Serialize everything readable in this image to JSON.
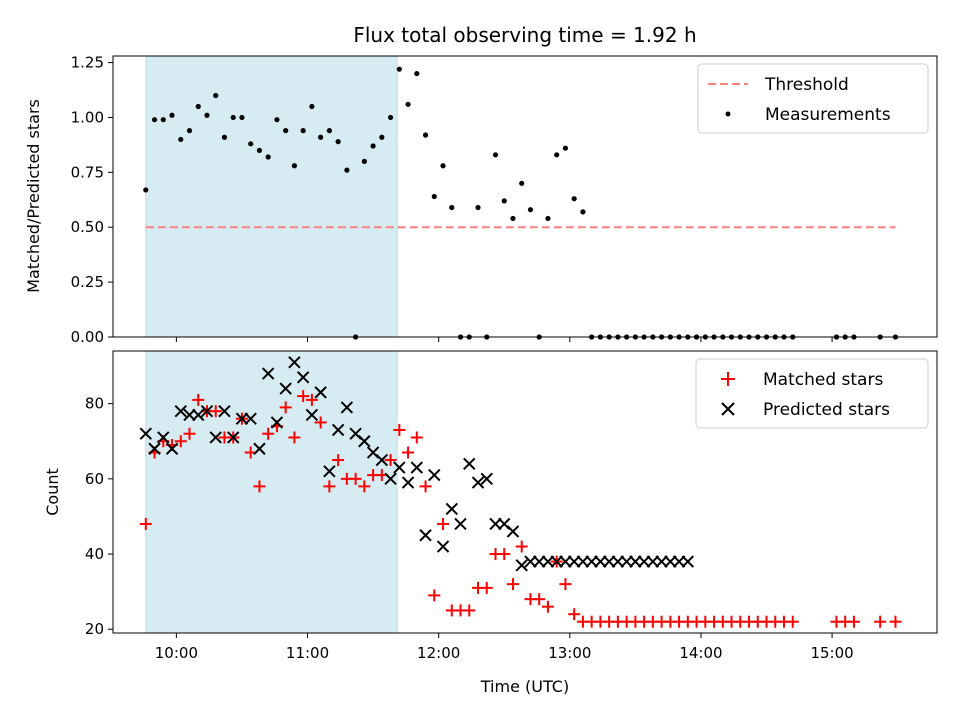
{
  "chart_data": [
    {
      "type": "scatter",
      "title": "Flux total observing time = 1.92 h",
      "xlabel": "",
      "ylabel": "Matched/Predicted stars",
      "ylim": [
        0,
        1.28
      ],
      "yticks": [
        "0.00",
        "0.25",
        "0.50",
        "0.75",
        "1.00",
        "1.25"
      ],
      "xlim": [
        "09:31",
        "15:48"
      ],
      "shaded_region": {
        "x_start": "09:46",
        "x_end": "11:41",
        "color": "#add8e6"
      },
      "legend": {
        "position": "top-right",
        "entries": [
          "Threshold",
          "Measurements"
        ]
      },
      "threshold": {
        "name": "Threshold",
        "value": 0.5,
        "x_start": "09:46",
        "x_end": "15:29",
        "color": "#ff7f7f",
        "style": "dashed"
      },
      "series": [
        {
          "name": "Measurements",
          "color": "#000000",
          "x": [
            "09:46",
            "09:50",
            "09:54",
            "09:58",
            "10:02",
            "10:06",
            "10:10",
            "10:14",
            "10:18",
            "10:22",
            "10:26",
            "10:30",
            "10:34",
            "10:38",
            "10:42",
            "10:46",
            "10:50",
            "10:54",
            "10:58",
            "11:02",
            "11:06",
            "11:10",
            "11:14",
            "11:18",
            "11:22",
            "11:26",
            "11:30",
            "11:34",
            "11:38",
            "11:42",
            "11:46",
            "11:50",
            "11:54",
            "11:58",
            "12:02",
            "12:06",
            "12:10",
            "12:14",
            "12:18",
            "12:22",
            "12:26",
            "12:30",
            "12:34",
            "12:38",
            "12:42",
            "12:46",
            "12:50",
            "12:54",
            "12:58",
            "13:02",
            "13:06",
            "13:10",
            "13:14",
            "13:18",
            "13:22",
            "13:26",
            "13:30",
            "13:34",
            "13:38",
            "13:42",
            "13:46",
            "13:50",
            "13:54",
            "13:58",
            "14:02",
            "14:06",
            "14:10",
            "14:14",
            "14:18",
            "14:22",
            "14:26",
            "14:30",
            "14:34",
            "14:38",
            "14:42",
            "15:02",
            "15:06",
            "15:10",
            "15:22",
            "15:29"
          ],
          "y": [
            0.67,
            0.99,
            0.99,
            1.01,
            0.9,
            0.94,
            1.05,
            1.01,
            1.1,
            0.91,
            1.0,
            1.0,
            0.88,
            0.85,
            0.82,
            0.99,
            0.94,
            0.78,
            0.94,
            1.05,
            0.91,
            0.94,
            0.89,
            0.76,
            0.0,
            0.8,
            0.87,
            0.91,
            1.0,
            1.22,
            1.06,
            1.2,
            0.92,
            0.64,
            0.78,
            0.59,
            0.0,
            0.0,
            0.59,
            0.0,
            0.83,
            0.62,
            0.54,
            0.7,
            0.58,
            0.0,
            0.54,
            0.83,
            0.86,
            0.63,
            0.57,
            0.0,
            0.0,
            0.0,
            0.0,
            0.0,
            0.0,
            0.0,
            0.0,
            0.0,
            0.0,
            0.0,
            0.0,
            0.0,
            0.0,
            0.0,
            0.0,
            0.0,
            0.0,
            0.0,
            0.0,
            0.0,
            0.0,
            0.0,
            0.0,
            0.0,
            0.0,
            0.0,
            0.0,
            0.0
          ]
        }
      ]
    },
    {
      "type": "scatter",
      "title": "",
      "xlabel": "Time (UTC)",
      "ylabel": "Count",
      "ylim": [
        19,
        94
      ],
      "yticks": [
        "20",
        "40",
        "60",
        "80"
      ],
      "xlim": [
        "09:31",
        "15:48"
      ],
      "xticks": [
        "10:00",
        "11:00",
        "12:00",
        "13:00",
        "14:00",
        "15:00"
      ],
      "shaded_region": {
        "x_start": "09:46",
        "x_end": "11:41",
        "color": "#add8e6"
      },
      "legend": {
        "position": "top-right",
        "entries": [
          "Matched stars",
          "Predicted stars"
        ]
      },
      "series": [
        {
          "name": "Matched stars",
          "marker": "+",
          "color": "#ff0000",
          "x": [
            "09:46",
            "09:50",
            "09:54",
            "09:58",
            "10:02",
            "10:06",
            "10:10",
            "10:14",
            "10:18",
            "10:22",
            "10:26",
            "10:30",
            "10:34",
            "10:38",
            "10:42",
            "10:46",
            "10:50",
            "10:54",
            "10:58",
            "11:02",
            "11:06",
            "11:10",
            "11:14",
            "11:18",
            "11:22",
            "11:26",
            "11:30",
            "11:34",
            "11:38",
            "11:42",
            "11:46",
            "11:50",
            "11:54",
            "11:58",
            "12:02",
            "12:06",
            "12:10",
            "12:14",
            "12:18",
            "12:22",
            "12:26",
            "12:30",
            "12:34",
            "12:38",
            "12:42",
            "12:46",
            "12:50",
            "12:54",
            "12:58",
            "13:02",
            "13:06",
            "13:10",
            "13:14",
            "13:18",
            "13:22",
            "13:26",
            "13:30",
            "13:34",
            "13:38",
            "13:42",
            "13:46",
            "13:50",
            "13:54",
            "13:58",
            "14:02",
            "14:06",
            "14:10",
            "14:14",
            "14:18",
            "14:22",
            "14:26",
            "14:30",
            "14:34",
            "14:38",
            "14:42",
            "15:02",
            "15:06",
            "15:10",
            "15:22",
            "15:29"
          ],
          "y": [
            48,
            67,
            70,
            69,
            70,
            72,
            81,
            78,
            78,
            71,
            71,
            76,
            67,
            58,
            72,
            74,
            79,
            71,
            82,
            81,
            75,
            58,
            65,
            60,
            60,
            58,
            61,
            61,
            65,
            73,
            67,
            71,
            58,
            29,
            48,
            25,
            25,
            25,
            31,
            31,
            40,
            40,
            32,
            42,
            28,
            28,
            26,
            38,
            32,
            24,
            22,
            22,
            22,
            22,
            22,
            22,
            22,
            22,
            22,
            22,
            22,
            22,
            22,
            22,
            22,
            22,
            22,
            22,
            22,
            22,
            22,
            22,
            22,
            22,
            22,
            22,
            22,
            22,
            22,
            22
          ]
        },
        {
          "name": "Predicted stars",
          "marker": "x",
          "color": "#000000",
          "x": [
            "09:46",
            "09:50",
            "09:54",
            "09:58",
            "10:02",
            "10:06",
            "10:10",
            "10:14",
            "10:18",
            "10:22",
            "10:26",
            "10:30",
            "10:34",
            "10:38",
            "10:42",
            "10:46",
            "10:50",
            "10:54",
            "10:58",
            "11:02",
            "11:06",
            "11:10",
            "11:14",
            "11:18",
            "11:22",
            "11:26",
            "11:30",
            "11:34",
            "11:38",
            "11:42",
            "11:46",
            "11:50",
            "11:54",
            "11:58",
            "12:02",
            "12:06",
            "12:10",
            "12:14",
            "12:18",
            "12:22",
            "12:26",
            "12:30",
            "12:34",
            "12:38",
            "12:42",
            "12:46",
            "12:50",
            "12:54",
            "12:58",
            "13:02",
            "13:06",
            "13:10",
            "13:14",
            "13:18",
            "13:22",
            "13:26",
            "13:30",
            "13:34",
            "13:38",
            "13:42",
            "13:46",
            "13:50",
            "13:54"
          ],
          "y": [
            72,
            68,
            71,
            68,
            78,
            77,
            77,
            78,
            71,
            78,
            71,
            76,
            76,
            68,
            88,
            75,
            84,
            91,
            87,
            77,
            83,
            62,
            73,
            79,
            72,
            70,
            67,
            65,
            60,
            63,
            59,
            63,
            45,
            61,
            42,
            52,
            48,
            64,
            59,
            60,
            48,
            48,
            46,
            37,
            38,
            38,
            38,
            38,
            38,
            38,
            38,
            38,
            38,
            38,
            38,
            38,
            38,
            38,
            38,
            38,
            38,
            38,
            38
          ]
        }
      ]
    }
  ]
}
